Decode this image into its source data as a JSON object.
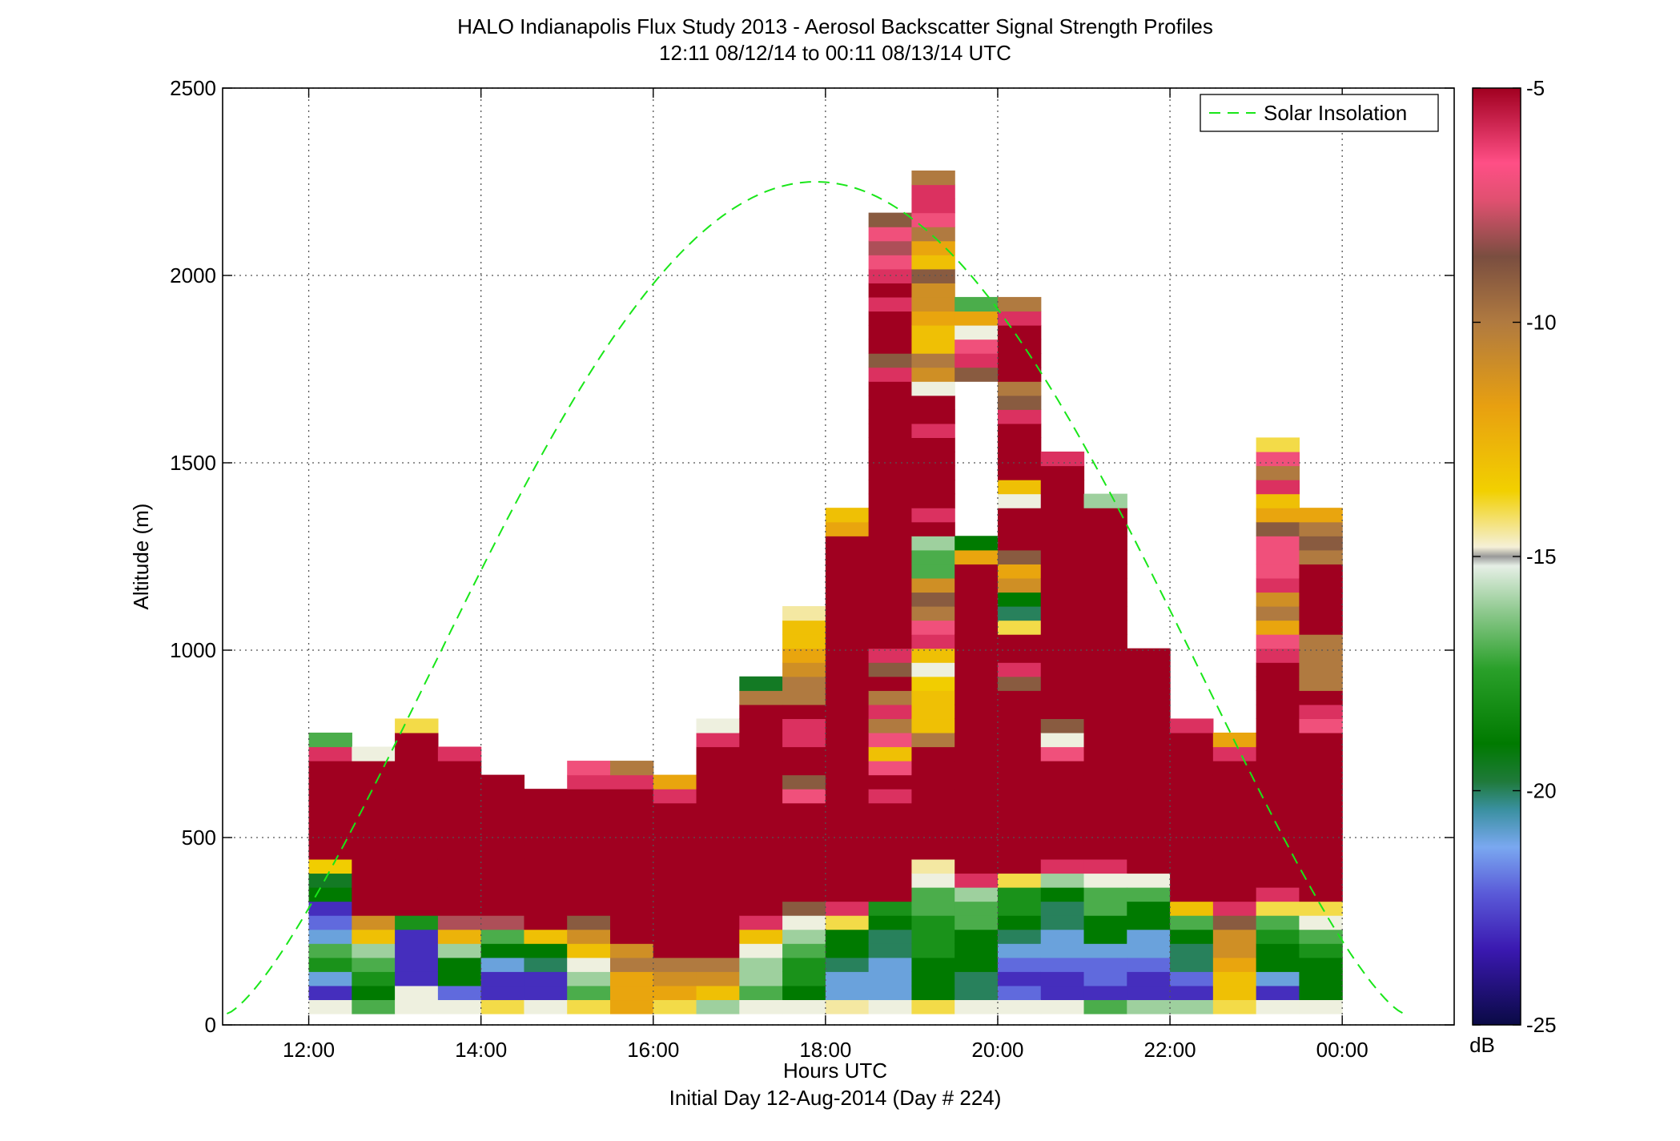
{
  "chart_data": {
    "type": "heatmap",
    "title": "HALO Indianapolis Flux Study 2013 - Aerosol Backscatter Signal Strength Profiles",
    "subtitle": "12:11 08/12/14 to 00:11 08/13/14  UTC",
    "xlabel": "Hours UTC",
    "xlabel2": "Initial Day 12-Aug-2014 (Day # 224)",
    "ylabel": "Altitude (m)",
    "xlim": [
      11.0,
      25.3
    ],
    "ylim": [
      0,
      2500
    ],
    "x_ticks": [
      12,
      14,
      16,
      18,
      20,
      22,
      24
    ],
    "x_tick_labels": [
      "12:00",
      "14:00",
      "16:00",
      "18:00",
      "20:00",
      "22:00",
      "00:00"
    ],
    "y_ticks": [
      0,
      500,
      1000,
      1500,
      2000,
      2500
    ],
    "y_tick_labels": [
      "0",
      "500",
      "1000",
      "1500",
      "2000",
      "2500"
    ],
    "grid": true,
    "colorbar": {
      "label": "dB",
      "range": [
        -25,
        -5
      ],
      "ticks": [
        -25,
        -20,
        -15,
        -10,
        -5
      ],
      "tick_labels": [
        "-25",
        "-20",
        "-15",
        "-10",
        "-5"
      ]
    },
    "legend": {
      "entries": [
        "Solar Insolation"
      ],
      "placement": "top-right",
      "line_color": "#19e619"
    },
    "column_width_hours": 0.5,
    "layer_height_m": 37.5,
    "columns": [
      {
        "t": 12.25,
        "levels": [
          -15,
          -23,
          -21,
          -18,
          -17,
          -21,
          -22,
          -23,
          -19,
          -19.5,
          -13.5,
          -5,
          -5,
          -5,
          -5,
          -5,
          -5,
          -5,
          -6,
          -17
        ]
      },
      {
        "t": 12.75,
        "levels": [
          -17,
          -19,
          -18,
          -17,
          -16,
          -13,
          -11,
          -5,
          -5,
          -5,
          -5,
          -5,
          -5,
          -5,
          -5,
          -5,
          -5,
          -5,
          -15
        ]
      },
      {
        "t": 13.25,
        "levels": [
          -15,
          -15,
          -23,
          -23,
          -23,
          -23,
          -18,
          -5,
          -5,
          -5,
          -5,
          -5,
          -5,
          -5,
          -5,
          -5,
          -5,
          -5,
          -5,
          -5,
          -14
        ]
      },
      {
        "t": 13.75,
        "levels": [
          -15,
          -22,
          -19,
          -19,
          -16,
          -12.5,
          -8,
          -5,
          -5,
          -5,
          -5,
          -5,
          -5,
          -5,
          -5,
          -5,
          -5,
          -5,
          -6
        ]
      },
      {
        "t": 14.25,
        "levels": [
          -14,
          -23,
          -23,
          -21,
          -19,
          -17,
          -8,
          -5,
          -5,
          -5,
          -5,
          -5,
          -5,
          -5,
          -5,
          -5,
          -5
        ]
      },
      {
        "t": 14.75,
        "levels": [
          -15,
          -23,
          -23,
          -20,
          -19,
          -13,
          -5,
          -5,
          -5,
          -5,
          -5,
          -5,
          -5,
          -5,
          -5,
          -5
        ]
      },
      {
        "t": 15.25,
        "levels": [
          -14,
          -17,
          -16,
          -15,
          -13,
          -11,
          -9,
          -5,
          -5,
          -5,
          -5,
          -5,
          -5,
          -5,
          -5,
          -5,
          -6,
          -7
        ]
      },
      {
        "t": 15.75,
        "levels": [
          -12,
          -12,
          -12,
          -10,
          -11,
          -5,
          -5,
          -5,
          -5,
          -5,
          -5,
          -5,
          -5,
          -5,
          -5,
          -5,
          -6,
          -10
        ]
      },
      {
        "t": 16.25,
        "levels": [
          -14,
          -12,
          -11,
          -10,
          -5,
          -5,
          -5,
          -5,
          -5,
          -5,
          -5,
          -5,
          -5,
          -5,
          -5,
          -6,
          -12
        ]
      },
      {
        "t": 16.75,
        "levels": [
          -16,
          -13,
          -11,
          -10,
          -5,
          -5,
          -5,
          -5,
          -5,
          -5,
          -5,
          -5,
          -5,
          -5,
          -5,
          -5,
          -5,
          -5,
          -5,
          -6,
          -15
        ]
      },
      {
        "t": 17.25,
        "levels": [
          -15,
          -17,
          -16,
          -16,
          -15,
          -13,
          -6,
          -5,
          -5,
          -5,
          -5,
          -5,
          -5,
          -5,
          -5,
          -5,
          -5,
          -5,
          -5,
          -5,
          -5,
          -5,
          -10,
          -19.5
        ]
      },
      {
        "t": 17.75,
        "levels": [
          -15,
          -19,
          -18,
          -18,
          -17,
          -16,
          -15,
          -9,
          -5,
          -5,
          -5,
          -5,
          -5,
          -5,
          -5,
          -7,
          -9,
          -5,
          -5,
          -6,
          -6,
          -5,
          -10,
          -10,
          -11,
          -12,
          -13,
          -13,
          -14.5
        ]
      },
      {
        "t": 18.25,
        "levels": [
          -14.5,
          -21,
          -21,
          -20,
          -19,
          -19,
          -14,
          -6,
          -5,
          -5,
          -5,
          -5,
          -5,
          -5,
          -5,
          -5,
          -5,
          -5,
          -5,
          -5,
          -5,
          -5,
          -5,
          -5,
          -5,
          -5,
          -5,
          -5,
          -5,
          -5,
          -5,
          -5,
          -5,
          -5,
          -12,
          -13
        ]
      },
      {
        "t": 18.75,
        "levels": [
          -15,
          -21,
          -21,
          -21,
          -20,
          -20,
          -19,
          -18,
          -5,
          -5,
          -5,
          -5,
          -5,
          -5,
          -5,
          -6,
          -5,
          -7,
          -13,
          -7,
          -10,
          -6,
          -10,
          -5,
          -9,
          -6,
          -5,
          -5,
          -5,
          -5,
          -5,
          -5,
          -5,
          -5,
          -5,
          -5,
          -5,
          -5,
          -5,
          -5,
          -5,
          -5,
          -5,
          -5,
          -5,
          -6,
          -9,
          -5,
          -5,
          -5,
          -6,
          -5,
          -6,
          -7,
          -8,
          -7,
          -9
        ]
      },
      {
        "t": 19.25,
        "levels": [
          -14,
          -19,
          -19,
          -19,
          -18,
          -18,
          -18,
          -17,
          -17,
          -15,
          -14.5,
          -5,
          -5,
          -5,
          -5,
          -5,
          -5,
          -5,
          -5,
          -10,
          -13,
          -13,
          -13,
          -13.5,
          -15,
          -13,
          -6,
          -7,
          -10,
          -9,
          -11,
          -17,
          -17,
          -16,
          -5,
          -6,
          -5,
          -5,
          -5,
          -5,
          -5,
          -6,
          -5,
          -5,
          -15,
          -11,
          -10,
          -13,
          -13,
          -12,
          -11,
          -11,
          -9,
          -13,
          -12,
          -10,
          -7,
          -6,
          -6,
          -10
        ]
      },
      {
        "t": 19.75,
        "levels": [
          -15,
          -20,
          -20,
          -19,
          -19,
          -19,
          -17,
          -17,
          -16,
          -6,
          -5,
          -5,
          -5,
          -5,
          -5,
          -5,
          -5,
          -5,
          -5,
          -5,
          -5,
          -5,
          -5,
          -5,
          -5,
          -5,
          -5,
          -5,
          -5,
          -5,
          -5,
          -5,
          -12,
          -19,
          null,
          null,
          null,
          null,
          null,
          null,
          null,
          null,
          null,
          null,
          null,
          -9,
          -6,
          -7,
          -15,
          -12,
          -17
        ]
      },
      {
        "t": 20.25,
        "levels": [
          -15,
          -22,
          -23,
          -22,
          -21,
          -20,
          -19,
          -18,
          -18,
          -14,
          -5,
          -5,
          -5,
          -5,
          -5,
          -5,
          -5,
          -5,
          -5,
          -5,
          -5,
          -5,
          -5,
          -9,
          -6,
          -5,
          -5,
          -14,
          -20,
          -19,
          -11,
          -12,
          -9,
          -5,
          -5,
          -5,
          -15,
          -13,
          -5,
          -5,
          -5,
          -5,
          -6,
          -9,
          -10,
          -5,
          -5,
          -5,
          -5,
          -6,
          -10
        ]
      },
      {
        "t": 20.75,
        "levels": [
          -15,
          -23,
          -23,
          -22,
          -21,
          -21,
          -20,
          -20,
          -19,
          -16,
          -6,
          -5,
          -5,
          -5,
          -5,
          -5,
          -5,
          -5,
          -7,
          -15,
          -9,
          -5,
          -5,
          -5,
          -5,
          -5,
          -5,
          -5,
          -5,
          -5,
          -5,
          -5,
          -5,
          -5,
          -5,
          -5,
          -5,
          -5,
          -5,
          -6
        ]
      },
      {
        "t": 21.25,
        "levels": [
          -17,
          -23,
          -22,
          -22,
          -21,
          -19,
          -19,
          -17,
          -17,
          -15,
          -6,
          -5,
          -5,
          -5,
          -5,
          -5,
          -5,
          -5,
          -5,
          -5,
          -5,
          -5,
          -5,
          -5,
          -5,
          -5,
          -5,
          -5,
          -5,
          -5,
          -5,
          -5,
          -5,
          -5,
          -5,
          -5,
          -16
        ]
      },
      {
        "t": 21.75,
        "levels": [
          -16,
          -23,
          -23,
          -22,
          -21,
          -21,
          -19,
          -19,
          -17,
          -15,
          -5,
          -5,
          -5,
          -5,
          -5,
          -5,
          -5,
          -5,
          -5,
          -5,
          -5,
          -5,
          -5,
          -5,
          -5,
          -5
        ]
      },
      {
        "t": 22.25,
        "levels": [
          -16,
          -23,
          -22,
          -20,
          -20,
          -19,
          -17,
          -13,
          -5,
          -5,
          -5,
          -5,
          -5,
          -5,
          -5,
          -5,
          -5,
          -5,
          -5,
          -5,
          -6
        ]
      },
      {
        "t": 22.75,
        "levels": [
          -14,
          -13,
          -13,
          -12,
          -11,
          -11,
          -9,
          -6,
          -5,
          -5,
          -5,
          -5,
          -5,
          -5,
          -5,
          -5,
          -5,
          -5,
          -6,
          -12
        ]
      },
      {
        "t": 23.25,
        "levels": [
          -15,
          -23,
          -21,
          -19,
          -19,
          -18,
          -17,
          -14,
          -6,
          -5,
          -5,
          -5,
          -5,
          -5,
          -5,
          -5,
          -5,
          -5,
          -5,
          -5,
          -5,
          -5,
          -5,
          -5,
          -5,
          -6,
          -7,
          -12,
          -10,
          -11,
          -6,
          -7,
          -7,
          -7,
          -9,
          -12,
          -13,
          -6,
          -10,
          -7,
          -14
        ]
      },
      {
        "t": 23.75,
        "levels": [
          -15,
          -19,
          -19,
          -19,
          -18,
          -17,
          -15,
          -14,
          -5,
          -5,
          -5,
          -5,
          -5,
          -5,
          -5,
          -5,
          -5,
          -5,
          -5,
          -5,
          -7,
          -6,
          -5,
          -10,
          -10,
          -10,
          -10,
          -5,
          -5,
          -5,
          -5,
          -5,
          -10,
          -9,
          -10,
          -12
        ]
      }
    ]
  }
}
